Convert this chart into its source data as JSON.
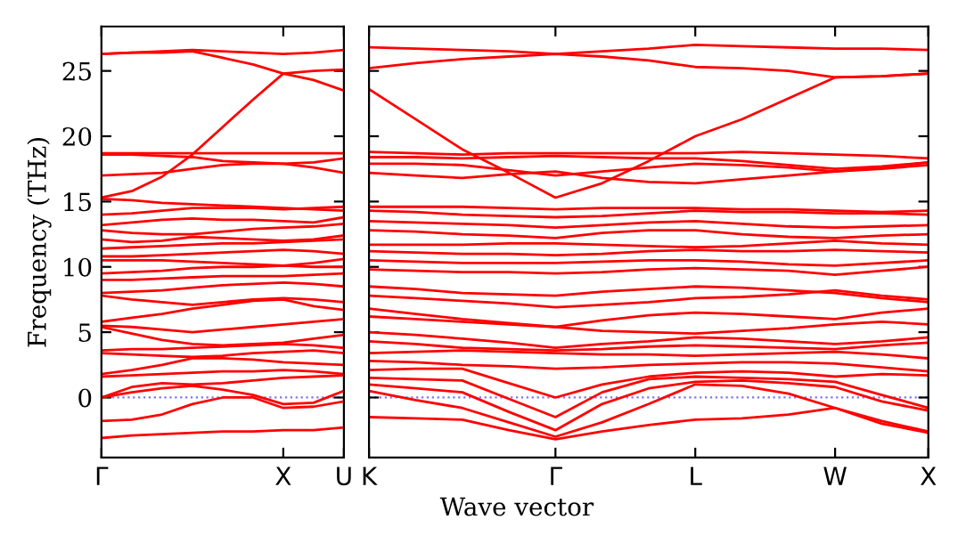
{
  "chart_data": [
    {
      "type": "line",
      "ylabel": "Frequency (THz)",
      "categories": [
        "Γ",
        null,
        null,
        null,
        null,
        null,
        "X",
        null,
        "U"
      ],
      "ylim": [
        -4.6,
        28.4
      ],
      "yticks": [
        0,
        5,
        10,
        15,
        20,
        25
      ],
      "grid": false,
      "line_style": "solid",
      "ref_lines": [
        {
          "axis": "y",
          "value": 0,
          "label": null,
          "color": "#7777ee",
          "line_style": "dotted"
        }
      ],
      "series": [
        {
          "color": "#ff0000",
          "values": [
            26.3,
            26.4,
            26.5,
            26.6,
            26.5,
            26.4,
            26.3,
            26.4,
            26.6
          ]
        },
        {
          "color": "#ff0000",
          "values": [
            26.3,
            26.4,
            26.4,
            26.5,
            26.0,
            25.5,
            24.8,
            24.3,
            23.5
          ]
        },
        {
          "color": "#ff0000",
          "values": [
            15.3,
            15.8,
            16.9,
            18.6,
            20.7,
            22.8,
            24.8,
            25.0,
            25.1
          ]
        },
        {
          "color": "#ff0000",
          "values": [
            18.7,
            18.7,
            18.7,
            18.7,
            18.7,
            18.7,
            18.7,
            18.7,
            18.7
          ]
        },
        {
          "color": "#ff0000",
          "values": [
            18.6,
            18.6,
            18.5,
            18.4,
            18.1,
            18.0,
            17.9,
            18.0,
            18.3
          ]
        },
        {
          "color": "#ff0000",
          "values": [
            17.0,
            17.1,
            17.2,
            17.5,
            17.8,
            17.9,
            17.9,
            17.6,
            17.2
          ]
        },
        {
          "color": "#ff0000",
          "values": [
            15.2,
            15.1,
            14.9,
            14.8,
            14.7,
            14.6,
            14.5,
            14.4,
            14.3
          ]
        },
        {
          "color": "#ff0000",
          "values": [
            14.0,
            14.1,
            14.3,
            14.5,
            14.5,
            14.5,
            14.4,
            14.5,
            14.6
          ]
        },
        {
          "color": "#ff0000",
          "values": [
            13.2,
            13.4,
            13.6,
            13.7,
            13.6,
            13.6,
            13.5,
            13.4,
            13.8
          ]
        },
        {
          "color": "#ff0000",
          "values": [
            12.8,
            12.6,
            12.5,
            12.5,
            12.7,
            12.9,
            13.0,
            13.1,
            13.3
          ]
        },
        {
          "color": "#ff0000",
          "values": [
            12.1,
            11.9,
            12.0,
            12.3,
            12.2,
            12.1,
            12.0,
            12.1,
            12.4
          ]
        },
        {
          "color": "#ff0000",
          "values": [
            11.4,
            11.5,
            11.6,
            11.7,
            11.8,
            11.8,
            11.9,
            12.0,
            12.1
          ]
        },
        {
          "color": "#ff0000",
          "values": [
            10.8,
            10.8,
            10.9,
            11.0,
            11.1,
            11.2,
            11.3,
            11.2,
            11.0
          ]
        },
        {
          "color": "#ff0000",
          "values": [
            10.5,
            10.5,
            10.5,
            10.4,
            10.3,
            10.2,
            10.1,
            10.3,
            10.6
          ]
        },
        {
          "color": "#ff0000",
          "values": [
            9.5,
            9.6,
            9.7,
            9.9,
            10.0,
            10.0,
            10.1,
            10.0,
            10.0
          ]
        },
        {
          "color": "#ff0000",
          "values": [
            9.0,
            9.0,
            9.1,
            9.2,
            9.3,
            9.3,
            9.3,
            9.4,
            9.5
          ]
        },
        {
          "color": "#ff0000",
          "values": [
            8.0,
            8.1,
            8.2,
            8.4,
            8.6,
            8.7,
            8.8,
            8.7,
            8.5
          ]
        },
        {
          "color": "#ff0000",
          "values": [
            7.8,
            7.5,
            7.3,
            7.1,
            7.3,
            7.5,
            7.6,
            7.5,
            7.3
          ]
        },
        {
          "color": "#ff0000",
          "values": [
            5.8,
            6.1,
            6.4,
            6.8,
            7.1,
            7.4,
            7.5,
            7.0,
            6.7
          ]
        },
        {
          "color": "#ff0000",
          "values": [
            5.5,
            5.4,
            5.2,
            5.0,
            5.2,
            5.4,
            5.6,
            5.8,
            6.0
          ]
        },
        {
          "color": "#ff0000",
          "values": [
            5.4,
            4.9,
            4.4,
            4.1,
            4.0,
            4.1,
            4.2,
            4.5,
            4.8
          ]
        },
        {
          "color": "#ff0000",
          "values": [
            3.6,
            3.7,
            3.7,
            3.8,
            3.9,
            4.0,
            4.1,
            4.0,
            3.8
          ]
        },
        {
          "color": "#ff0000",
          "values": [
            3.4,
            3.3,
            3.2,
            3.1,
            3.2,
            3.4,
            3.5,
            3.6,
            3.4
          ]
        },
        {
          "color": "#ff0000",
          "values": [
            1.8,
            2.1,
            2.5,
            3.0,
            3.0,
            2.9,
            2.7,
            2.6,
            2.5
          ]
        },
        {
          "color": "#ff0000",
          "values": [
            1.6,
            1.7,
            1.8,
            1.9,
            2.0,
            2.0,
            2.1,
            2.0,
            1.8
          ]
        },
        {
          "color": "#ff0000",
          "values": [
            0.0,
            0.8,
            1.1,
            1.0,
            1.1,
            1.3,
            1.5,
            1.6,
            1.7
          ]
        },
        {
          "color": "#ff0000",
          "values": [
            0.0,
            0.4,
            0.7,
            0.9,
            0.6,
            0.2,
            -0.5,
            -0.4,
            0.5
          ]
        },
        {
          "color": "#ff0000",
          "values": [
            -1.8,
            -1.7,
            -1.3,
            -0.5,
            0.0,
            0.0,
            -0.8,
            -0.7,
            -0.3
          ]
        },
        {
          "color": "#ff0000",
          "values": [
            -3.1,
            -2.9,
            -2.8,
            -2.7,
            -2.6,
            -2.6,
            -2.5,
            -2.5,
            -2.3
          ]
        }
      ]
    },
    {
      "type": "line",
      "xlabel": "Wave vector",
      "categories": [
        "K",
        null,
        null,
        null,
        "Γ",
        null,
        null,
        "L",
        null,
        null,
        "W",
        null,
        "X"
      ],
      "ylim": [
        -4.6,
        28.4
      ],
      "yticks": [
        0,
        5,
        10,
        15,
        20,
        25
      ],
      "tick_labels": "x",
      "grid": false,
      "line_style": "solid",
      "ref_lines": [
        {
          "axis": "y",
          "value": 0,
          "label": null,
          "color": "#7777ee",
          "line_style": "dotted"
        }
      ],
      "series": [
        {
          "color": "#ff0000",
          "values": [
            26.8,
            26.7,
            26.6,
            26.5,
            26.3,
            26.5,
            26.7,
            27.0,
            26.9,
            26.8,
            26.7,
            26.7,
            26.6
          ]
        },
        {
          "color": "#ff0000",
          "values": [
            25.2,
            25.6,
            25.9,
            26.1,
            26.3,
            26.1,
            25.8,
            25.3,
            25.2,
            25.0,
            24.5,
            24.6,
            24.8
          ]
        },
        {
          "color": "#ff0000",
          "values": [
            23.6,
            21.3,
            19.0,
            17.2,
            15.3,
            16.4,
            18.1,
            20.0,
            21.3,
            22.9,
            24.5,
            24.6,
            24.8
          ]
        },
        {
          "color": "#ff0000",
          "values": [
            18.8,
            18.7,
            18.6,
            18.7,
            18.7,
            18.7,
            18.7,
            18.7,
            18.8,
            18.7,
            18.6,
            18.5,
            18.3
          ]
        },
        {
          "color": "#ff0000",
          "values": [
            18.4,
            18.4,
            18.3,
            18.4,
            18.5,
            18.4,
            18.3,
            18.3,
            18.1,
            17.8,
            17.5,
            17.7,
            18.0
          ]
        },
        {
          "color": "#ff0000",
          "values": [
            17.9,
            17.9,
            17.8,
            17.4,
            17.0,
            17.3,
            17.6,
            17.9,
            17.8,
            17.6,
            17.3,
            17.6,
            18.0
          ]
        },
        {
          "color": "#ff0000",
          "values": [
            17.2,
            17.0,
            16.8,
            17.1,
            17.3,
            16.8,
            16.5,
            16.4,
            16.7,
            17.0,
            17.3,
            17.5,
            17.8
          ]
        },
        {
          "color": "#ff0000",
          "values": [
            14.6,
            14.6,
            14.6,
            14.5,
            14.4,
            14.5,
            14.5,
            14.5,
            14.4,
            14.4,
            14.3,
            14.2,
            14.3
          ]
        },
        {
          "color": "#ff0000",
          "values": [
            14.3,
            14.2,
            14.0,
            13.9,
            13.8,
            13.9,
            14.1,
            14.3,
            14.2,
            14.2,
            14.1,
            14.1,
            14.0
          ]
        },
        {
          "color": "#ff0000",
          "values": [
            13.5,
            13.4,
            13.3,
            13.2,
            13.0,
            13.2,
            13.4,
            13.5,
            13.3,
            13.1,
            13.0,
            13.1,
            13.2
          ]
        },
        {
          "color": "#ff0000",
          "values": [
            12.8,
            12.7,
            12.5,
            12.4,
            12.2,
            12.6,
            12.8,
            12.8,
            12.5,
            12.3,
            12.2,
            12.4,
            12.5
          ]
        },
        {
          "color": "#ff0000",
          "values": [
            11.7,
            11.7,
            11.7,
            11.8,
            11.8,
            11.7,
            11.6,
            11.5,
            11.6,
            11.8,
            12.0,
            11.8,
            11.7
          ]
        },
        {
          "color": "#ff0000",
          "values": [
            11.2,
            11.1,
            11.0,
            11.0,
            10.9,
            11.0,
            11.2,
            11.3,
            11.2,
            11.2,
            11.3,
            11.2,
            11.1
          ]
        },
        {
          "color": "#ff0000",
          "values": [
            10.5,
            10.4,
            10.3,
            10.3,
            10.3,
            10.4,
            10.5,
            10.5,
            10.4,
            10.2,
            10.1,
            10.3,
            10.5
          ]
        },
        {
          "color": "#ff0000",
          "values": [
            9.8,
            9.7,
            9.6,
            9.6,
            9.5,
            9.6,
            9.8,
            9.9,
            9.8,
            9.7,
            9.4,
            9.7,
            10.0
          ]
        },
        {
          "color": "#ff0000",
          "values": [
            8.5,
            8.3,
            8.0,
            7.9,
            7.8,
            8.1,
            8.3,
            8.5,
            8.4,
            8.2,
            8.0,
            7.6,
            7.3
          ]
        },
        {
          "color": "#ff0000",
          "values": [
            7.8,
            7.6,
            7.4,
            7.2,
            6.9,
            7.1,
            7.3,
            7.6,
            7.7,
            7.9,
            8.2,
            7.8,
            7.5
          ]
        },
        {
          "color": "#ff0000",
          "values": [
            6.8,
            6.4,
            6.0,
            5.7,
            5.4,
            5.9,
            6.3,
            6.5,
            6.4,
            6.2,
            6.0,
            6.5,
            6.8
          ]
        },
        {
          "color": "#ff0000",
          "values": [
            6.2,
            6.0,
            5.8,
            5.6,
            5.4,
            5.1,
            5.0,
            4.9,
            5.1,
            5.3,
            5.6,
            5.8,
            5.6
          ]
        },
        {
          "color": "#ff0000",
          "values": [
            5.0,
            4.8,
            4.5,
            4.2,
            3.8,
            4.1,
            4.3,
            4.6,
            4.5,
            4.3,
            4.1,
            4.3,
            4.6
          ]
        },
        {
          "color": "#ff0000",
          "values": [
            4.3,
            4.1,
            3.8,
            3.7,
            3.6,
            3.7,
            3.9,
            4.0,
            3.9,
            3.8,
            3.7,
            4.0,
            4.2
          ]
        },
        {
          "color": "#ff0000",
          "values": [
            3.4,
            3.5,
            3.6,
            3.5,
            3.4,
            3.3,
            3.3,
            3.2,
            3.3,
            3.4,
            3.5,
            3.3,
            3.0
          ]
        },
        {
          "color": "#ff0000",
          "values": [
            2.8,
            2.7,
            2.5,
            2.4,
            2.2,
            2.3,
            2.5,
            2.6,
            2.7,
            2.7,
            2.6,
            2.3,
            2.0
          ]
        },
        {
          "color": "#ff0000",
          "values": [
            2.1,
            2.2,
            2.2,
            1.1,
            0.0,
            1.0,
            1.6,
            1.9,
            2.0,
            1.9,
            1.6,
            1.8,
            1.7
          ]
        },
        {
          "color": "#ff0000",
          "values": [
            1.5,
            1.4,
            1.3,
            -0.1,
            -1.5,
            0.4,
            1.4,
            1.6,
            1.5,
            1.4,
            1.2,
            0.2,
            -0.8
          ]
        },
        {
          "color": "#ff0000",
          "values": [
            1.0,
            0.7,
            0.4,
            -1.1,
            -2.5,
            -0.5,
            0.7,
            1.2,
            1.3,
            1.1,
            0.8,
            -0.3,
            -1.0
          ]
        },
        {
          "color": "#ff0000",
          "values": [
            0.5,
            -0.2,
            -0.8,
            -1.9,
            -3.0,
            -1.9,
            -0.5,
            1.0,
            0.9,
            0.3,
            -0.8,
            -1.8,
            -2.6
          ]
        },
        {
          "color": "#ff0000",
          "values": [
            -1.5,
            -1.6,
            -1.7,
            -2.5,
            -3.2,
            -2.6,
            -2.1,
            -1.7,
            -1.6,
            -1.3,
            -0.8,
            -2.0,
            -2.7
          ]
        }
      ]
    }
  ]
}
